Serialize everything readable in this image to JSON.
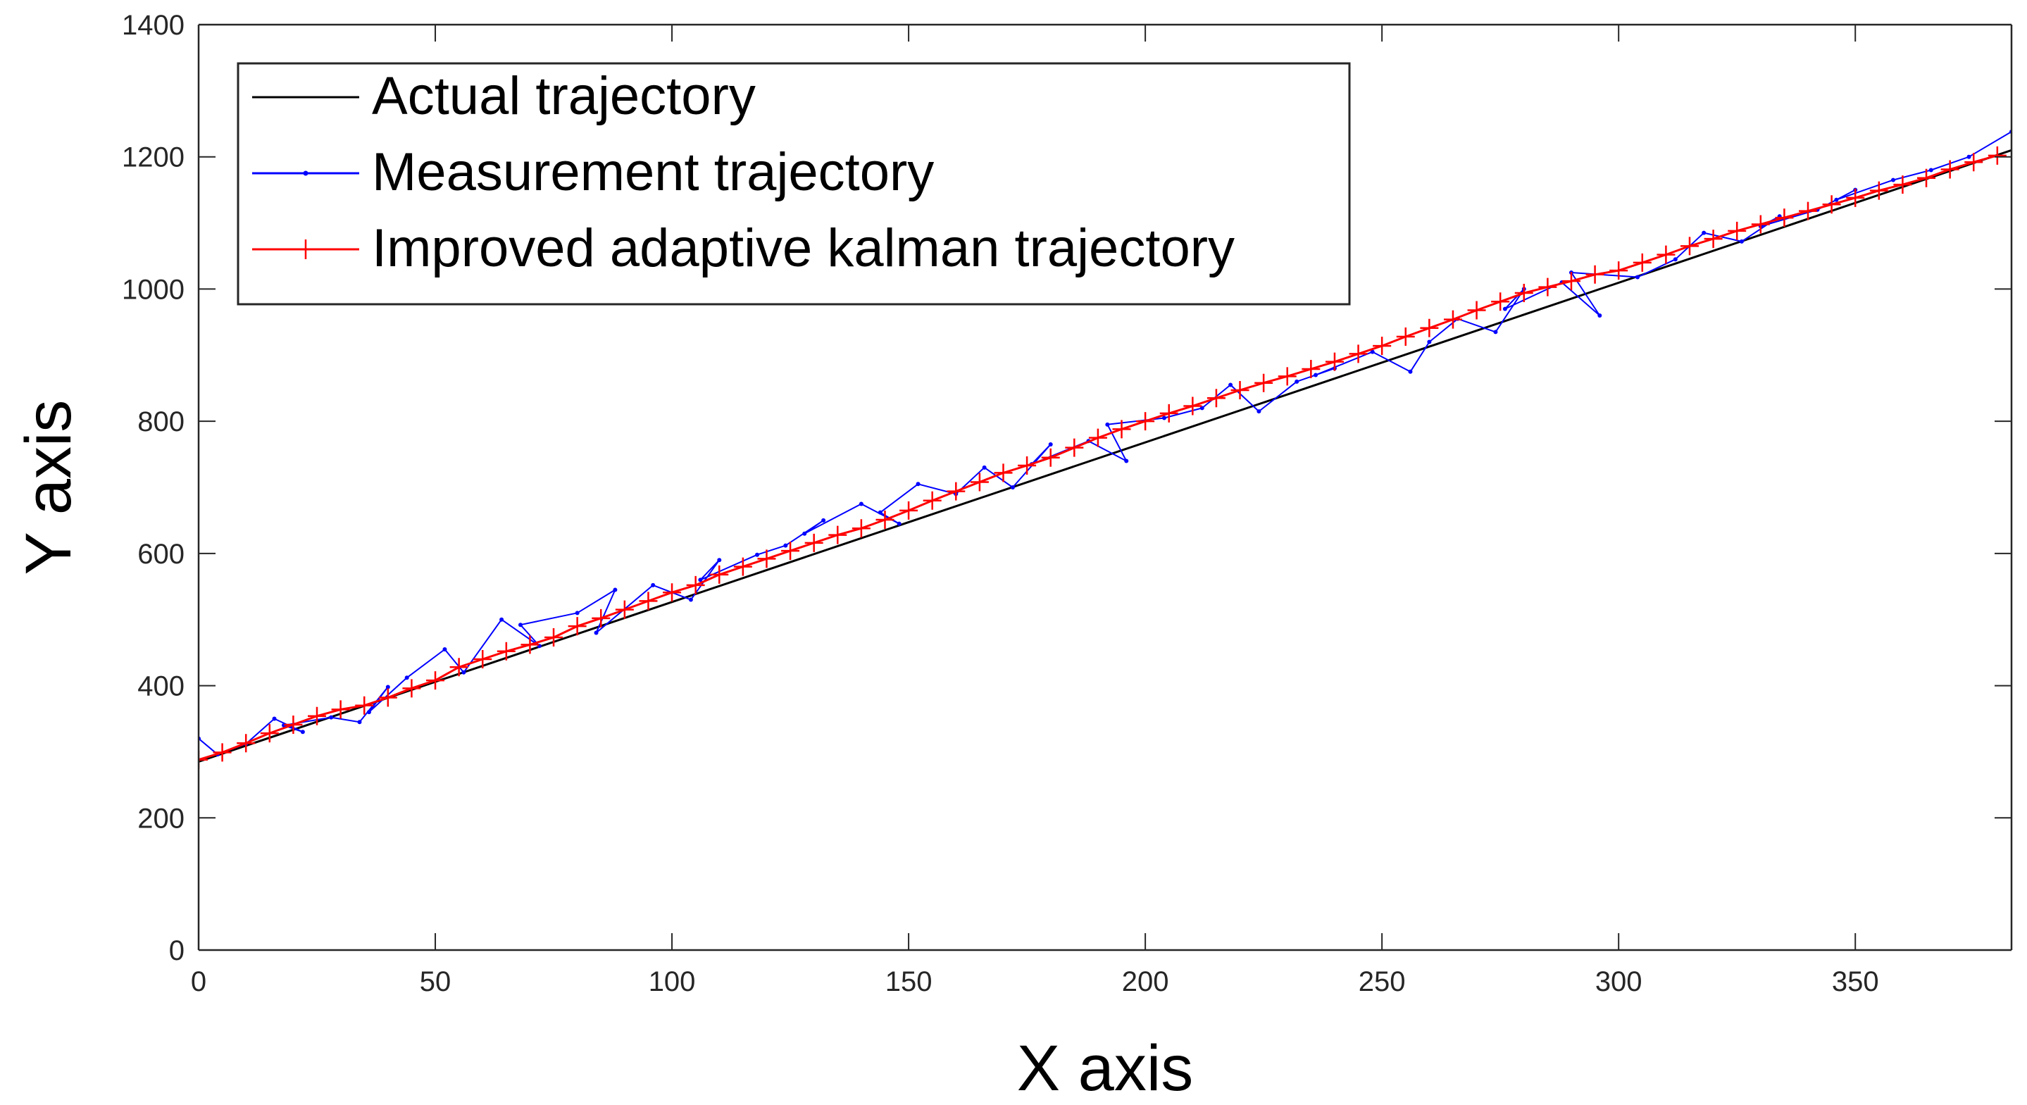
{
  "chart_data": {
    "type": "line",
    "title": "",
    "xlabel": "X axis",
    "ylabel": "Y axis",
    "xlim": [
      0,
      383
    ],
    "ylim": [
      0,
      1400
    ],
    "xticks": [
      0,
      50,
      100,
      150,
      200,
      250,
      300,
      350
    ],
    "yticks": [
      0,
      200,
      400,
      600,
      800,
      1000,
      1200,
      1400
    ],
    "xtick_labels": [
      "0",
      "50",
      "100",
      "150",
      "200",
      "250",
      "300",
      "350"
    ],
    "ytick_labels": [
      "0",
      "200",
      "400",
      "600",
      "800",
      "1000",
      "1200",
      "1400"
    ],
    "grid": false,
    "legend_position": "top-left",
    "series": [
      {
        "name": "Actual trajectory",
        "color": "#000000",
        "marker": "none",
        "x": [
          0,
          383
        ],
        "y": [
          285,
          1210
        ]
      },
      {
        "name": "Measurement trajectory",
        "color": "#0000ff",
        "marker": "dot",
        "x": [
          0,
          4,
          10,
          16,
          22,
          18,
          28,
          34,
          40,
          36,
          44,
          52,
          56,
          64,
          72,
          68,
          80,
          88,
          84,
          96,
          104,
          110,
          106,
          118,
          124,
          132,
          128,
          140,
          148,
          144,
          152,
          160,
          166,
          172,
          180,
          176,
          188,
          196,
          192,
          204,
          212,
          218,
          224,
          232,
          240,
          236,
          248,
          256,
          260,
          266,
          274,
          280,
          276,
          288,
          296,
          290,
          304,
          312,
          318,
          326,
          334,
          330,
          342,
          350,
          346,
          358,
          366,
          374,
          383
        ],
        "y": [
          320,
          296,
          312,
          350,
          330,
          340,
          352,
          345,
          398,
          360,
          412,
          455,
          420,
          500,
          460,
          492,
          510,
          545,
          480,
          552,
          530,
          590,
          560,
          598,
          612,
          650,
          630,
          675,
          645,
          662,
          705,
          690,
          730,
          700,
          765,
          735,
          770,
          740,
          795,
          805,
          820,
          855,
          815,
          860,
          880,
          870,
          905,
          875,
          920,
          955,
          935,
          1000,
          970,
          1010,
          960,
          1025,
          1018,
          1045,
          1085,
          1072,
          1110,
          1095,
          1120,
          1150,
          1135,
          1165,
          1180,
          1200,
          1238
        ]
      },
      {
        "name": "Improved adaptive kalman trajectory",
        "color": "#ff0000",
        "marker": "plus",
        "x": [
          0,
          5,
          10,
          15,
          20,
          25,
          30,
          35,
          40,
          45,
          50,
          55,
          60,
          65,
          70,
          75,
          80,
          85,
          90,
          95,
          100,
          105,
          110,
          115,
          120,
          125,
          130,
          135,
          140,
          145,
          150,
          155,
          160,
          165,
          170,
          175,
          180,
          185,
          190,
          195,
          200,
          205,
          210,
          215,
          220,
          225,
          230,
          235,
          240,
          245,
          250,
          255,
          260,
          265,
          270,
          275,
          280,
          285,
          290,
          295,
          300,
          305,
          310,
          315,
          320,
          325,
          330,
          335,
          340,
          345,
          350,
          355,
          360,
          365,
          370,
          375,
          380
        ],
        "y": [
          288,
          299,
          313,
          328,
          341,
          354,
          364,
          370,
          382,
          396,
          408,
          428,
          440,
          452,
          462,
          473,
          490,
          502,
          515,
          528,
          541,
          552,
          568,
          580,
          592,
          604,
          616,
          628,
          638,
          651,
          665,
          680,
          694,
          708,
          722,
          733,
          745,
          760,
          775,
          788,
          800,
          812,
          823,
          835,
          847,
          858,
          868,
          879,
          890,
          902,
          914,
          928,
          941,
          954,
          968,
          981,
          994,
          1003,
          1012,
          1022,
          1028,
          1040,
          1052,
          1065,
          1076,
          1088,
          1098,
          1108,
          1118,
          1128,
          1138,
          1149,
          1158,
          1168,
          1181,
          1192,
          1202
        ]
      }
    ]
  }
}
